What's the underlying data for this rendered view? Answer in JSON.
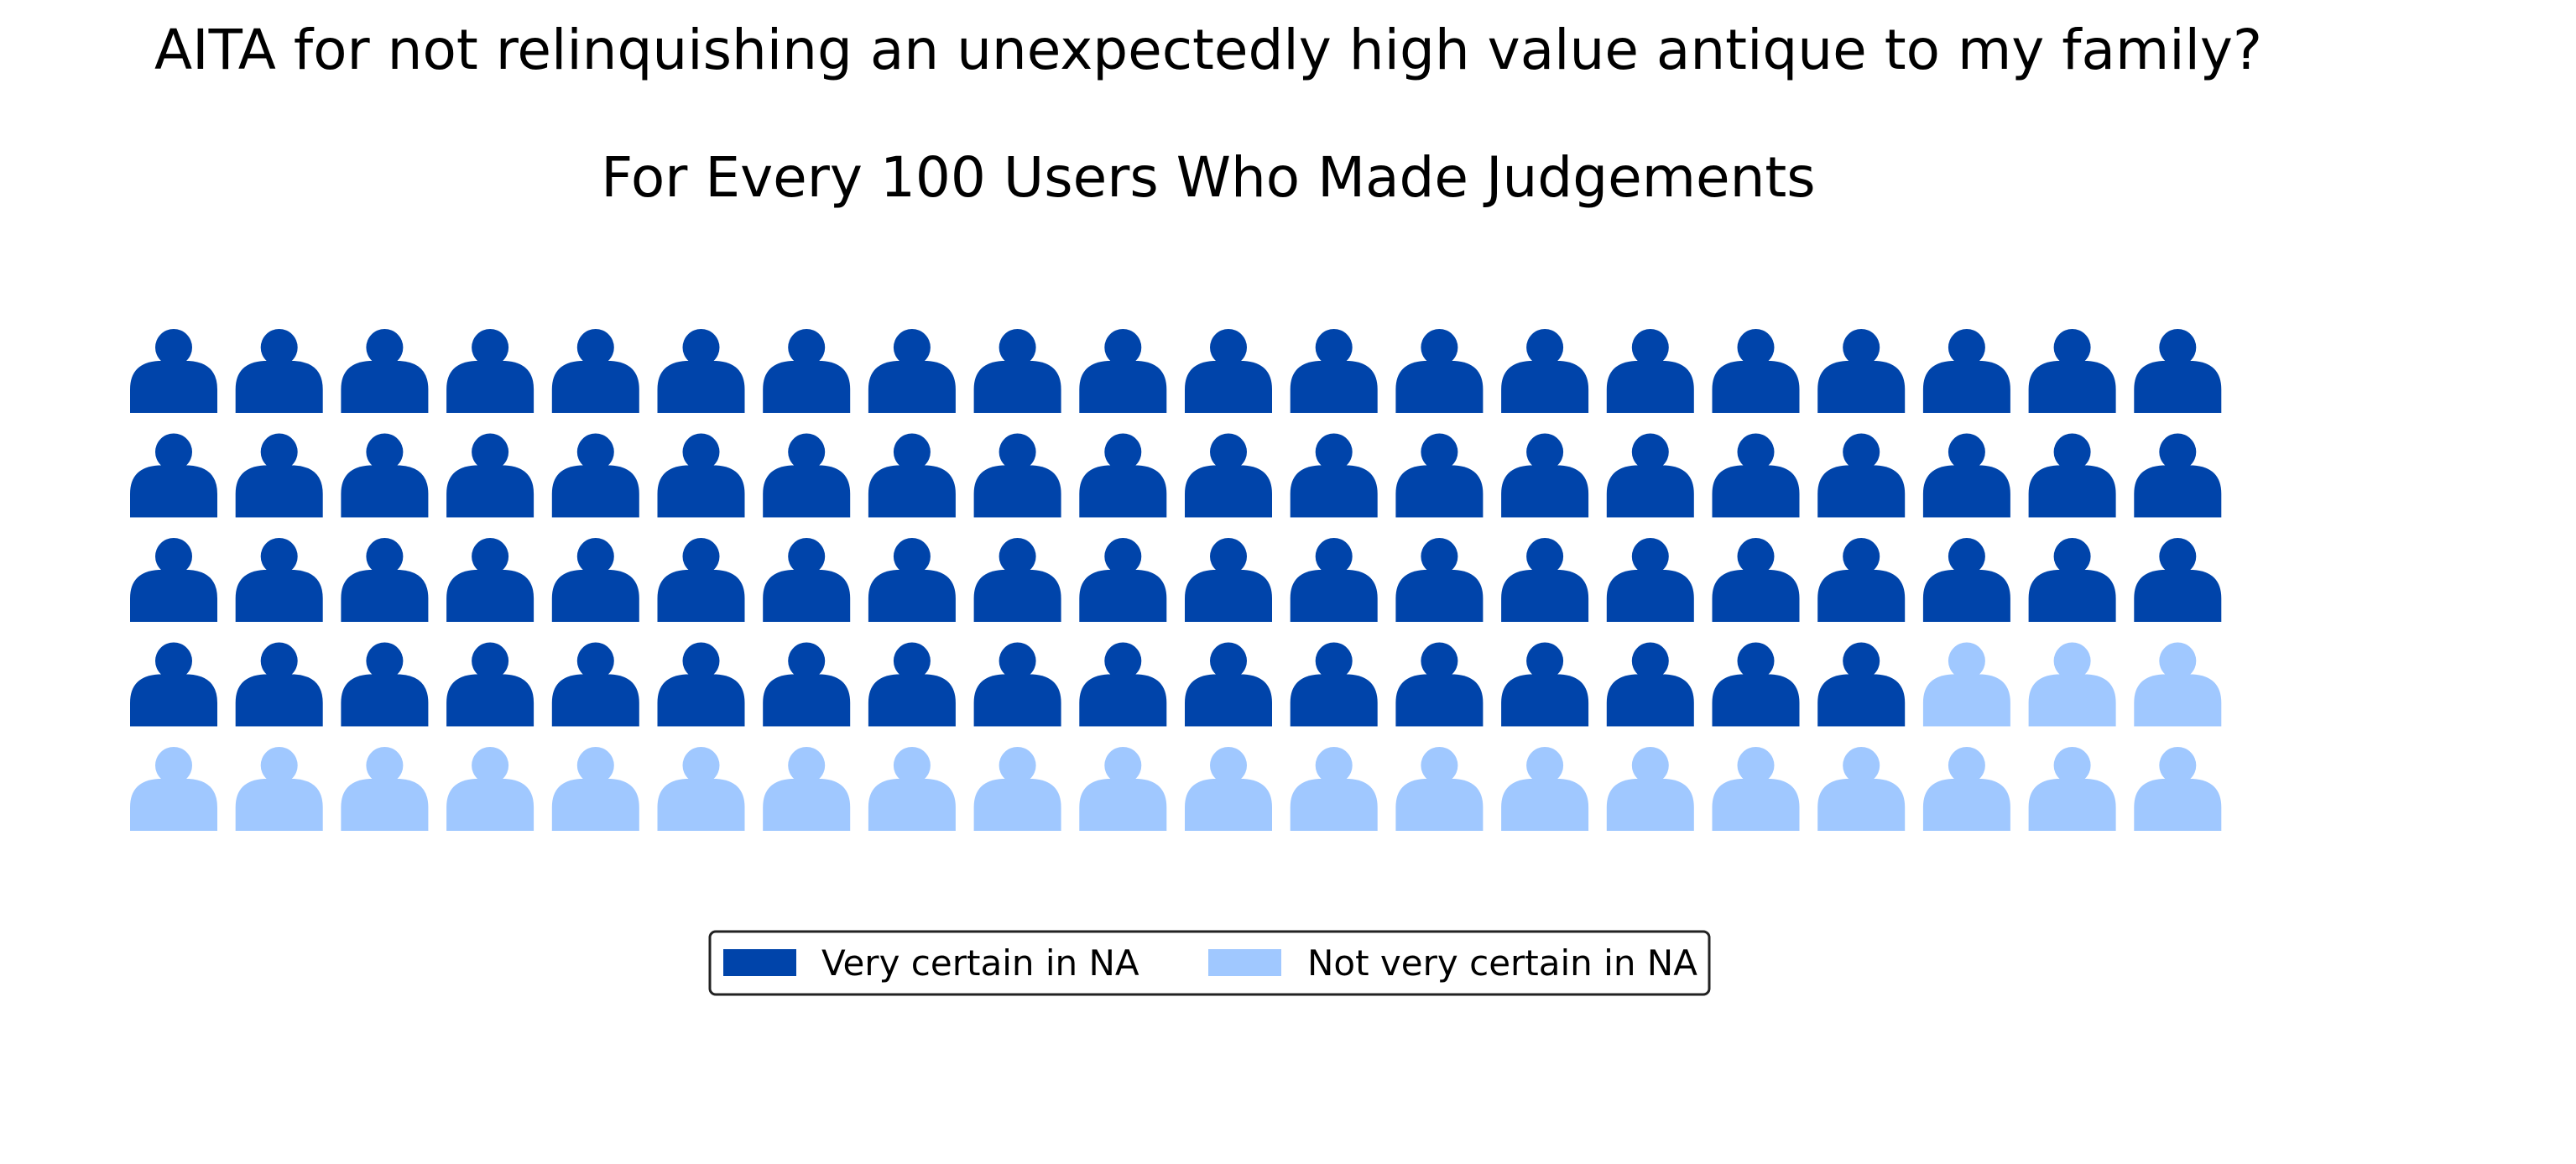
{
  "chart_data": {
    "type": "waffle",
    "title": "AITA for not relinquishing an unexpectedly high value antique to my family?",
    "subtitle": "For Every 100 Users Who Made Judgements",
    "total": 100,
    "rows": 5,
    "columns": 20,
    "series": [
      {
        "name": "Very certain in NA",
        "value": 77,
        "color": "#0044aa"
      },
      {
        "name": "Not very certain in NA",
        "value": 23,
        "color": "#a0c8ff"
      }
    ],
    "legend_position": "bottom-center"
  }
}
